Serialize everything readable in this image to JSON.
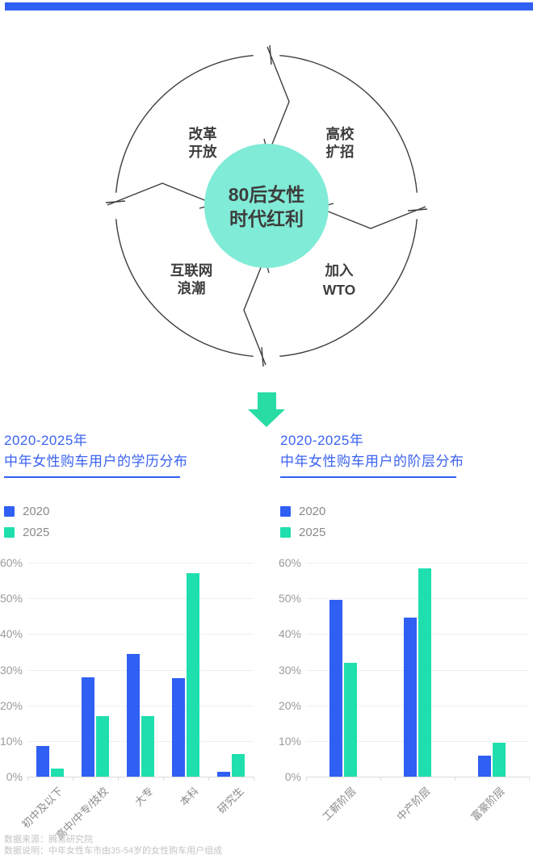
{
  "colors": {
    "accent_blue": "#2F5FF3",
    "accent_teal": "#1EDFAD",
    "arrow_green": "#28DCA4",
    "center_circle": "#80EBD6",
    "diagram_ink": "#3D3D3D",
    "title_blue": "#3B63F1",
    "axis_text": "#9B9B9B",
    "category_text": "#8A8A8A",
    "gridline": "#EFEFEF",
    "footer_text": "#C4C4C4"
  },
  "diagram": {
    "center": {
      "line1": "80后女性",
      "line2": "时代红利"
    },
    "factors": [
      {
        "line1": "改革",
        "line2": "开放"
      },
      {
        "line1": "高校",
        "line2": "扩招"
      },
      {
        "line1": "互联网",
        "line2": "浪潮"
      },
      {
        "line1": "加入",
        "line2": "WTO"
      }
    ]
  },
  "chart_data": [
    {
      "type": "bar",
      "title": "2020-2025年",
      "subtitle": "中年女性购车用户的学历分布",
      "categories": [
        "初中及以下",
        "高中/中专/技校",
        "大专",
        "本科",
        "研究生"
      ],
      "series": [
        {
          "name": "2020",
          "color": "#2F5FF3",
          "values": [
            8.5,
            27.8,
            34.5,
            27.6,
            1.3
          ]
        },
        {
          "name": "2025",
          "color": "#1EDFAD",
          "values": [
            2.2,
            17,
            17,
            57,
            6.4
          ]
        }
      ],
      "ylim": [
        0,
        60
      ],
      "ytick_step": 10,
      "ytick_suffix": "%",
      "grid": true,
      "legend_position": "top-left"
    },
    {
      "type": "bar",
      "title": "2020-2025年",
      "subtitle": "中年女性购车用户的阶层分布",
      "categories": [
        "工薪阶层",
        "中产阶层",
        "富豪阶层"
      ],
      "series": [
        {
          "name": "2020",
          "color": "#2F5FF3",
          "values": [
            49.5,
            44.5,
            6
          ]
        },
        {
          "name": "2025",
          "color": "#1EDFAD",
          "values": [
            32,
            58.5,
            9.6
          ]
        }
      ],
      "ylim": [
        0,
        60
      ],
      "ytick_step": 10,
      "ytick_suffix": "%",
      "grid": true,
      "legend_position": "top-left"
    }
  ],
  "footer": {
    "line1": "数据来源：腾易研究院",
    "line2": "数据说明：中年女性车市由35-54岁的女性购车用户组成"
  }
}
